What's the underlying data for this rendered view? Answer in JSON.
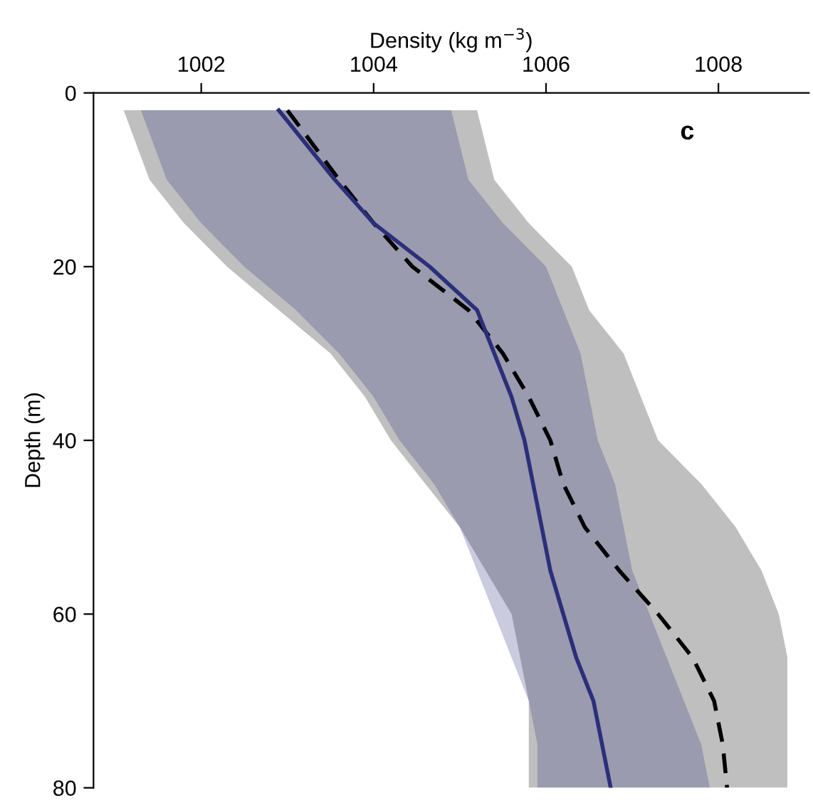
{
  "chart_data": {
    "type": "line",
    "orientation": "horizontal",
    "xlabel": "Density (kg m$^{−3}$)",
    "ylabel": "Depth (m)",
    "xlim": [
      1000.75,
      1009.05
    ],
    "xticks": [
      1002,
      1004,
      1006,
      1008
    ],
    "ylim": [
      80,
      0
    ],
    "yticks": [
      0,
      20,
      40,
      60,
      80
    ],
    "grid": false,
    "annotations": [
      "c"
    ],
    "x": [
      2,
      10,
      15,
      20,
      25,
      30,
      35,
      40,
      45,
      50,
      55,
      60,
      65,
      70,
      75,
      80
    ],
    "series": [
      {
        "color": "#000000",
        "line_style": "dashed",
        "values": [
          1003.0,
          1003.6,
          1004.0,
          1004.45,
          1005.1,
          1005.5,
          1005.8,
          1006.05,
          1006.2,
          1006.45,
          1006.85,
          1007.3,
          1007.7,
          1007.95,
          1008.05,
          1008.1
        ],
        "lower": [
          1001.1,
          1001.4,
          1001.8,
          1002.3,
          1002.9,
          1003.5,
          1003.9,
          1004.2,
          1004.6,
          1005.0,
          1005.3,
          1005.6,
          1005.7,
          1005.8,
          1005.8,
          1005.8
        ],
        "upper": [
          1005.2,
          1005.4,
          1005.8,
          1006.3,
          1006.5,
          1006.9,
          1007.1,
          1007.3,
          1007.8,
          1008.2,
          1008.5,
          1008.7,
          1008.8,
          1008.8,
          1008.8,
          1008.8
        ]
      },
      {
        "color": "#2b2f7a",
        "line_style": "solid",
        "values": [
          1002.9,
          1003.55,
          1004.0,
          1004.65,
          1005.2,
          1005.4,
          1005.6,
          1005.75,
          1005.85,
          1005.95,
          1006.05,
          1006.2,
          1006.35,
          1006.55,
          1006.65,
          1006.75
        ],
        "lower": [
          1001.3,
          1001.6,
          1002.0,
          1002.5,
          1003.1,
          1003.6,
          1004.0,
          1004.3,
          1004.7,
          1005.0,
          1005.2,
          1005.4,
          1005.6,
          1005.8,
          1005.9,
          1005.9
        ],
        "upper": [
          1004.9,
          1005.1,
          1005.5,
          1006.0,
          1006.2,
          1006.4,
          1006.5,
          1006.6,
          1006.8,
          1006.9,
          1007.0,
          1007.2,
          1007.4,
          1007.6,
          1007.8,
          1007.9
        ]
      }
    ]
  }
}
